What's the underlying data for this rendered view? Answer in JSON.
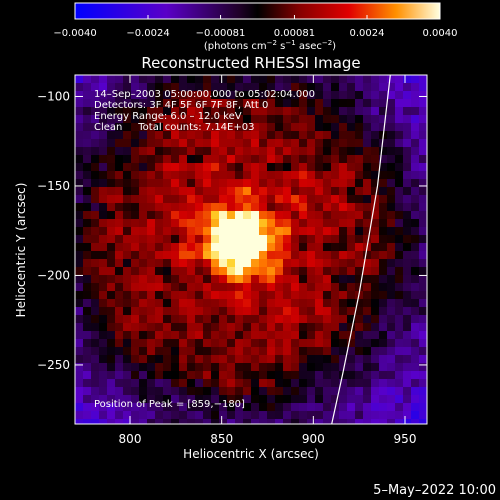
{
  "colorbar": {
    "ticks": [
      "−0.0040",
      "−0.0024",
      "−0.00081",
      "0.00081",
      "0.0024",
      "0.0040"
    ],
    "tick_values": [
      -0.004,
      -0.0024,
      -0.00081,
      0.00081,
      0.0024,
      0.004
    ],
    "range": [
      -0.004,
      0.004
    ],
    "unit_parts": {
      "a": "(photons cm",
      "a_sup": "−2",
      "b": " s",
      "b_sup": "−1",
      "c": " asec",
      "c_sup": "−2",
      "d": ")"
    }
  },
  "chart_data": {
    "type": "heatmap",
    "title": "Reconstructed RHESSI Image",
    "xlabel": "Heliocentric X (arcsec)",
    "ylabel": "Heliocentric Y (arcsec)",
    "xlim": [
      770,
      962
    ],
    "ylim": [
      -283,
      -88
    ],
    "xticks": [
      800,
      850,
      900,
      950
    ],
    "yticks": [
      -100,
      -150,
      -200,
      -250
    ],
    "peak": {
      "x": 859,
      "y": -180
    },
    "limb_curve": [
      [
        942,
        -88
      ],
      [
        935,
        -150
      ],
      [
        925,
        -210
      ],
      [
        916,
        -255
      ],
      [
        910,
        -283
      ]
    ],
    "annotations": [
      "14–Sep–2003 05:00:00.000 to 05:02:04.000",
      "Detectors: 3F 4F 5F 6F 7F 8F, Att 0",
      "Energy Range: 6.0 – 12.0 keV",
      "Clean     Total counts: 7.14E+03"
    ],
    "peak_label": "Position of Peak = [859,−180]"
  },
  "timestamp": "5–May–2022 10:00"
}
